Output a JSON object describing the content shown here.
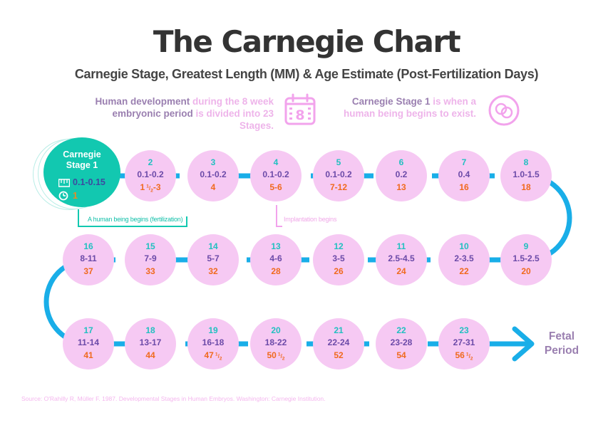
{
  "title": "The Carnegie Chart",
  "subtitle": "Carnegie Stage, Greatest Length (MM) & Age Estimate (Post-Fertilization Days)",
  "intro_left": {
    "part1": "Human development",
    "part2": " during the 8 week",
    "part3": "embryonic period",
    "part4": " is divided into 23 Stages."
  },
  "intro_right": {
    "part1": "Carnegie Stage 1",
    "part2": " is when a",
    "part3": "human being begins to exist."
  },
  "icons": {
    "calendar": "calendar-icon",
    "calendar_digit": "8",
    "cells": "cells-icon",
    "ruler": "ruler-icon",
    "clock": "clock-icon"
  },
  "stage1": {
    "title_line1": "Carnegie",
    "title_line2": "Stage 1",
    "length": "0.1-0.15",
    "age": "1"
  },
  "stages": [
    {
      "num": "2",
      "len": "0.1-0.2",
      "age": "1",
      "age_frac_top": "1",
      "age_frac_bot": "2",
      "age_suffix": "-3"
    },
    {
      "num": "3",
      "len": "0.1-0.2",
      "age": "4"
    },
    {
      "num": "4",
      "len": "0.1-0.2",
      "age": "5-6"
    },
    {
      "num": "5",
      "len": "0.1-0.2",
      "age": "7-12"
    },
    {
      "num": "6",
      "len": "0.2",
      "age": "13"
    },
    {
      "num": "7",
      "len": "0.4",
      "age": "16"
    },
    {
      "num": "8",
      "len": "1.0-1.5",
      "age": "18"
    },
    {
      "num": "9",
      "len": "1.5-2.5",
      "age": "20"
    },
    {
      "num": "10",
      "len": "2-3.5",
      "age": "22"
    },
    {
      "num": "11",
      "len": "2.5-4.5",
      "age": "24"
    },
    {
      "num": "12",
      "len": "3-5",
      "age": "26"
    },
    {
      "num": "13",
      "len": "4-6",
      "age": "28"
    },
    {
      "num": "14",
      "len": "5-7",
      "age": "32"
    },
    {
      "num": "15",
      "len": "7-9",
      "age": "33"
    },
    {
      "num": "16",
      "len": "8-11",
      "age": "37"
    },
    {
      "num": "17",
      "len": "11-14",
      "age": "41"
    },
    {
      "num": "18",
      "len": "13-17",
      "age": "44"
    },
    {
      "num": "19",
      "len": "16-18",
      "age": "47",
      "age_frac_top": "1",
      "age_frac_bot": "2"
    },
    {
      "num": "20",
      "len": "18-22",
      "age": "50",
      "age_frac_top": "1",
      "age_frac_bot": "2"
    },
    {
      "num": "21",
      "len": "22-24",
      "age": "52"
    },
    {
      "num": "22",
      "len": "23-28",
      "age": "54"
    },
    {
      "num": "23",
      "len": "27-31",
      "age": "56",
      "age_frac_top": "1",
      "age_frac_bot": "2"
    }
  ],
  "callouts": {
    "fertilization": "A human being begins (fertilization)",
    "implantation": "Implantation begins"
  },
  "fetal_line1": "Fetal",
  "fetal_line2": "Period",
  "source": "Source: O'Rahilly R, Müller F. 1987. Developmental Stages in Human Embryos. Washington: Carnegie Institution.",
  "colors": {
    "path": "#19aee8",
    "circle": "#f6c9f3",
    "stage1": "#12c8b0",
    "stage_num": "#22c0c0",
    "length": "#6b4aa8",
    "age": "#f06a1e",
    "heading_accent": "#9a7fb0",
    "light_accent": "#eeb4ea"
  }
}
